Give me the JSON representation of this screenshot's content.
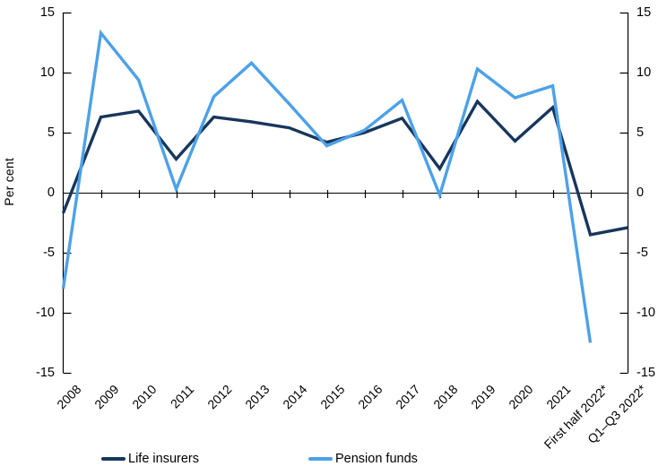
{
  "chart_data": {
    "type": "line",
    "title": "",
    "ylabel": "Per cent",
    "ylim": [
      -15,
      15
    ],
    "yticks": [
      15,
      10,
      5,
      0,
      -5,
      -10,
      -15
    ],
    "grid": false,
    "legend_position": "bottom",
    "axis_color": "#000000",
    "background_color": "#ffffff",
    "categories": [
      "2008",
      "2009",
      "2010",
      "2011",
      "2012",
      "2013",
      "2014",
      "2015",
      "2016",
      "2017",
      "2018",
      "2019",
      "2020",
      "2021",
      "First half 2022*",
      "Q1–Q3 2022*"
    ],
    "series": [
      {
        "name": "Life insurers",
        "color": "#17365D",
        "values": [
          -1.7,
          6.3,
          6.8,
          2.8,
          6.3,
          5.9,
          5.4,
          4.2,
          5.0,
          6.2,
          2.0,
          7.6,
          4.3,
          7.1,
          -3.5,
          -2.9
        ]
      },
      {
        "name": "Pension funds",
        "color": "#4DA1E8",
        "values": [
          -8.0,
          13.3,
          9.4,
          0.3,
          8.0,
          10.8,
          7.4,
          3.9,
          5.2,
          7.7,
          -0.2,
          10.3,
          7.9,
          8.9,
          -12.5,
          null
        ]
      }
    ]
  }
}
